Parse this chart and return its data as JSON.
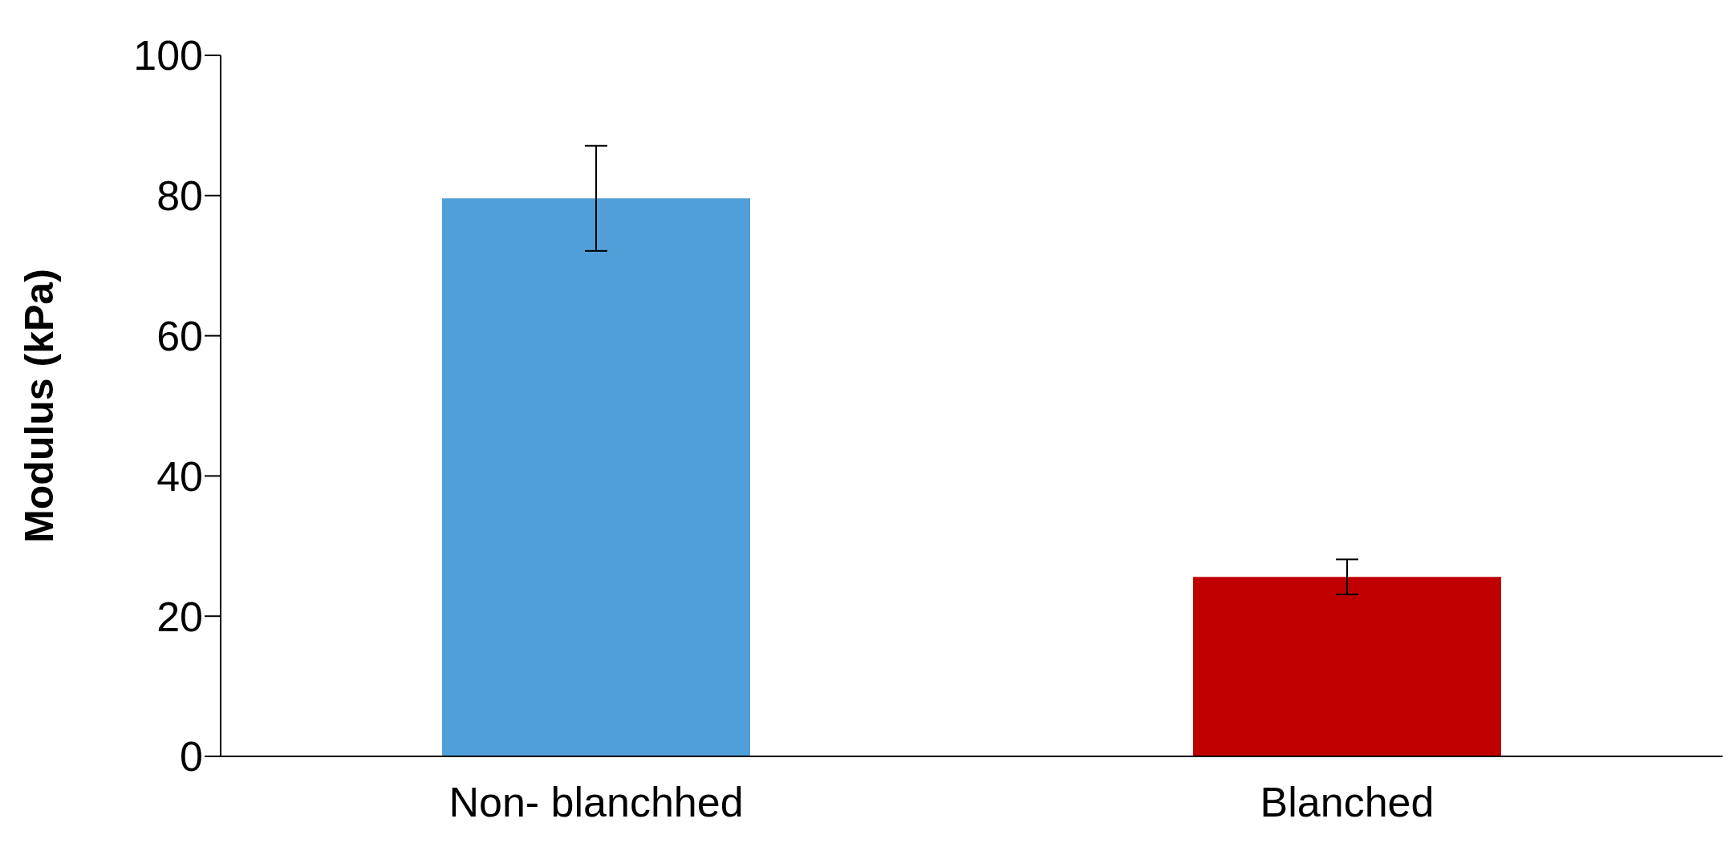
{
  "chart_data": {
    "type": "bar",
    "ylabel": "Modulus (kPa)",
    "categories": [
      "Non- blanchhed",
      "Blanched"
    ],
    "values": [
      79.6,
      25.6
    ],
    "errors": [
      7.5,
      2.5
    ],
    "colors": [
      "#519fd8",
      "#c00000"
    ],
    "ylim": [
      0,
      100
    ],
    "yticks": [
      0,
      20,
      40,
      60,
      80,
      100
    ]
  }
}
